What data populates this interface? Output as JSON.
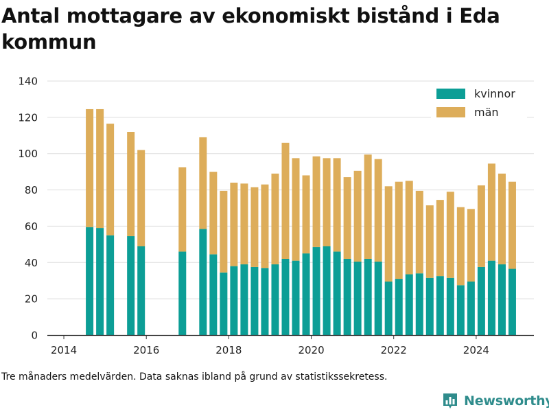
{
  "title": "Antal mottagare av ekonomiskt bistånd i Eda kommun",
  "footnote": "Tre månaders medelvärden. Data saknas ibland på grund av statistikssekretess.",
  "brand": {
    "name": "Newsworthy",
    "icon": "bar-chart-logo-icon",
    "color": "#2f8c8c"
  },
  "chart_data": {
    "type": "bar",
    "stacked": true,
    "title": "Antal mottagare av ekonomiskt bistånd i Eda kommun",
    "xlabel": "",
    "ylabel": "",
    "ylim": [
      0,
      140
    ],
    "yticks": [
      0,
      20,
      40,
      60,
      80,
      100,
      120,
      140
    ],
    "xlim": [
      2013.6,
      2025.4
    ],
    "xticks": [
      2014,
      2016,
      2018,
      2020,
      2022,
      2024
    ],
    "grid": true,
    "legend_position": "top-right",
    "x": [
      2014.625,
      2014.875,
      2015.125,
      2015.625,
      2015.875,
      2016.875,
      2017.375,
      2017.625,
      2017.875,
      2018.125,
      2018.375,
      2018.625,
      2018.875,
      2019.125,
      2019.375,
      2019.625,
      2019.875,
      2020.125,
      2020.375,
      2020.625,
      2020.875,
      2021.125,
      2021.375,
      2021.625,
      2021.875,
      2022.125,
      2022.375,
      2022.625,
      2022.875,
      2023.125,
      2023.375,
      2023.625,
      2023.875,
      2024.125,
      2024.375,
      2024.625,
      2024.875
    ],
    "series": [
      {
        "name": "kvinnor",
        "color": "#0c9e96",
        "values": [
          59.5,
          59,
          55,
          54.5,
          49,
          46,
          58.5,
          44.5,
          34.5,
          38,
          39,
          37.5,
          37,
          39,
          42,
          41,
          45,
          48.5,
          49,
          46,
          42,
          40.5,
          42,
          40.5,
          29.5,
          31,
          33.5,
          34,
          31.5,
          32.5,
          31.5,
          27.5,
          29.5,
          37.5,
          41,
          39,
          36.5
        ]
      },
      {
        "name": "män",
        "color": "#ddad5a",
        "values": [
          65,
          65.5,
          61.5,
          57.5,
          53,
          46.5,
          50.5,
          45.5,
          45,
          46,
          44.5,
          44,
          46,
          50,
          64,
          56.5,
          43,
          50,
          48.5,
          51.5,
          45,
          50,
          57.5,
          56.5,
          52.5,
          53.5,
          51.5,
          45.5,
          40,
          42,
          47.5,
          43,
          40,
          45,
          53.5,
          50,
          48
        ]
      }
    ]
  }
}
